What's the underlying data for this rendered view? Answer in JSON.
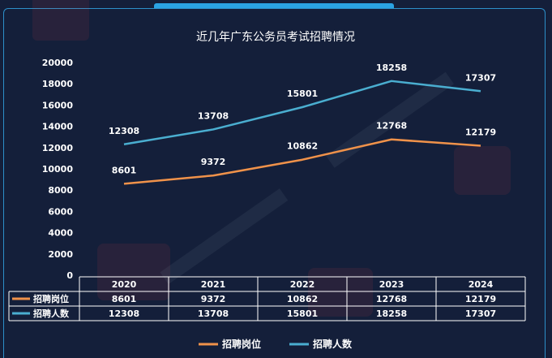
{
  "chart_data": {
    "type": "line",
    "title": "近几年广东公务员考试招聘情况",
    "categories": [
      "2020",
      "2021",
      "2022",
      "2023",
      "2024"
    ],
    "ylim": [
      0,
      20000
    ],
    "yticks": [
      0,
      2000,
      4000,
      6000,
      8000,
      10000,
      12000,
      14000,
      16000,
      18000,
      20000
    ],
    "grid": false,
    "legend_position": "bottom",
    "data_table": true,
    "series": [
      {
        "name": "招聘岗位",
        "color": "#f0924a",
        "values": [
          8601,
          9372,
          10862,
          12768,
          12179
        ]
      },
      {
        "name": "招聘人数",
        "color": "#4aaed0",
        "values": [
          12308,
          13708,
          15801,
          18258,
          17307
        ]
      }
    ]
  }
}
